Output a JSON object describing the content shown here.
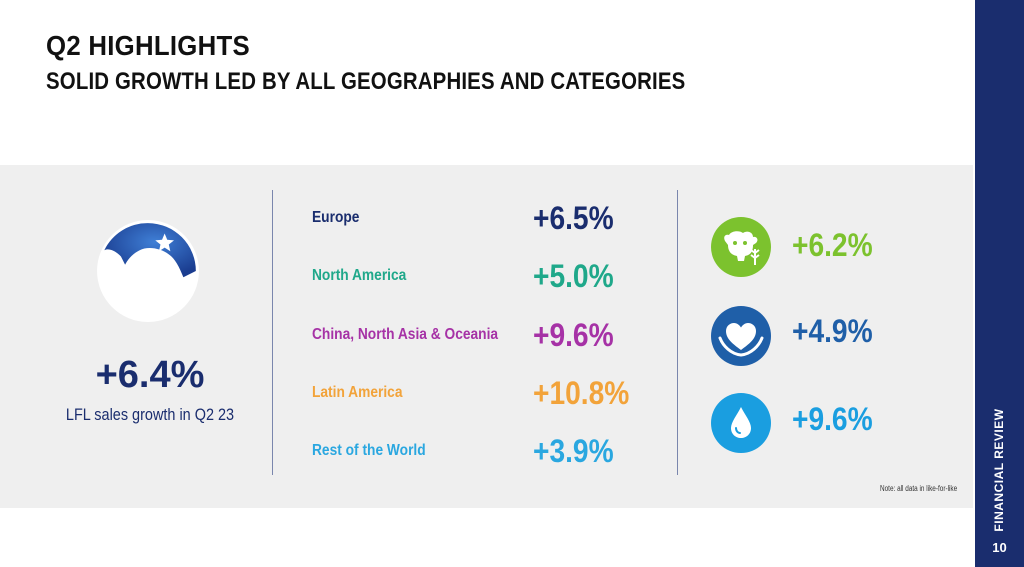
{
  "slide": {
    "title": "Q2 HIGHLIGHTS",
    "subtitle": "SOLID GROWTH LED BY ALL GEOGRAPHIES AND CATEGORIES",
    "section_label": "FINANCIAL REVIEW",
    "page_number": "10",
    "note": "Note: all data in like-for-like"
  },
  "hero": {
    "value": "+6.4%",
    "label": "LFL sales growth in Q2 23"
  },
  "regions": [
    {
      "label": "Europe",
      "value": "+6.5%",
      "color": "#1a2d6e"
    },
    {
      "label": "North America",
      "value": "+5.0%",
      "color": "#1fa88a"
    },
    {
      "label": "China, North Asia & Oceania",
      "value": "+9.6%",
      "color": "#a632a6"
    },
    {
      "label": "Latin America",
      "value": "+10.8%",
      "color": "#f2a33a"
    },
    {
      "label": "Rest of the World",
      "value": "+3.9%",
      "color": "#2aa7e0"
    }
  ],
  "categories": [
    {
      "icon": "dairy-plant-icon",
      "value": "+6.2%",
      "color": "#7cc22e"
    },
    {
      "icon": "heart-hands-icon",
      "value": "+4.9%",
      "color": "#1f5fa8"
    },
    {
      "icon": "water-drop-icon",
      "value": "+9.6%",
      "color": "#1a9ee0"
    }
  ],
  "colors": {
    "brand_navy": "#1a2d6e",
    "band_gray": "#efefef"
  }
}
